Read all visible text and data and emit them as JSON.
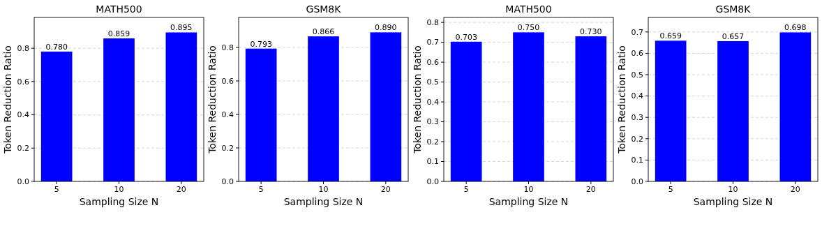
{
  "chart_data": [
    {
      "type": "bar",
      "title": "MATH500",
      "xlabel": "Sampling Size N",
      "ylabel": "Token Reduction Ratio",
      "categories": [
        "5",
        "10",
        "20"
      ],
      "values": [
        0.78,
        0.859,
        0.895
      ],
      "value_labels": [
        "0.780",
        "0.859",
        "0.895"
      ],
      "color": "#0000ff",
      "ylim": [
        0,
        0.985
      ],
      "yticks": [
        {
          "value": 0,
          "label": "0.0"
        },
        {
          "value": 0.2,
          "label": "0.2"
        },
        {
          "value": 0.4,
          "label": "0.4"
        },
        {
          "value": 0.6,
          "label": "0.6"
        },
        {
          "value": 0.8,
          "label": "0.8"
        }
      ],
      "grid": "y"
    },
    {
      "type": "bar",
      "title": "GSM8K",
      "xlabel": "Sampling Size N",
      "ylabel": "Token Reduction Ratio",
      "categories": [
        "5",
        "10",
        "20"
      ],
      "values": [
        0.793,
        0.866,
        0.89
      ],
      "value_labels": [
        "0.793",
        "0.866",
        "0.890"
      ],
      "color": "#0000ff",
      "ylim": [
        0,
        0.979
      ],
      "yticks": [
        {
          "value": 0,
          "label": "0.0"
        },
        {
          "value": 0.2,
          "label": "0.2"
        },
        {
          "value": 0.4,
          "label": "0.4"
        },
        {
          "value": 0.6,
          "label": "0.6"
        },
        {
          "value": 0.8,
          "label": "0.8"
        }
      ],
      "grid": "y"
    },
    {
      "type": "bar",
      "title": "MATH500",
      "xlabel": "Sampling Size N",
      "ylabel": "Token Reduction Ratio",
      "categories": [
        "5",
        "10",
        "20"
      ],
      "values": [
        0.703,
        0.75,
        0.73
      ],
      "value_labels": [
        "0.703",
        "0.750",
        "0.730"
      ],
      "color": "#0000ff",
      "ylim": [
        0,
        0.825
      ],
      "yticks": [
        {
          "value": 0,
          "label": "0.0"
        },
        {
          "value": 0.1,
          "label": "0.1"
        },
        {
          "value": 0.2,
          "label": "0.2"
        },
        {
          "value": 0.3,
          "label": "0.3"
        },
        {
          "value": 0.4,
          "label": "0.4"
        },
        {
          "value": 0.5,
          "label": "0.5"
        },
        {
          "value": 0.6,
          "label": "0.6"
        },
        {
          "value": 0.7,
          "label": "0.7"
        },
        {
          "value": 0.8,
          "label": "0.8"
        }
      ],
      "grid": "y"
    },
    {
      "type": "bar",
      "title": "GSM8K",
      "xlabel": "Sampling Size N",
      "ylabel": "Token Reduction Ratio",
      "categories": [
        "5",
        "10",
        "20"
      ],
      "values": [
        0.659,
        0.657,
        0.698
      ],
      "value_labels": [
        "0.659",
        "0.657",
        "0.698"
      ],
      "color": "#0000ff",
      "ylim": [
        0,
        0.768
      ],
      "yticks": [
        {
          "value": 0,
          "label": "0.0"
        },
        {
          "value": 0.1,
          "label": "0.1"
        },
        {
          "value": 0.2,
          "label": "0.2"
        },
        {
          "value": 0.3,
          "label": "0.3"
        },
        {
          "value": 0.4,
          "label": "0.4"
        },
        {
          "value": 0.5,
          "label": "0.5"
        },
        {
          "value": 0.6,
          "label": "0.6"
        },
        {
          "value": 0.7,
          "label": "0.7"
        }
      ],
      "grid": "y"
    }
  ]
}
